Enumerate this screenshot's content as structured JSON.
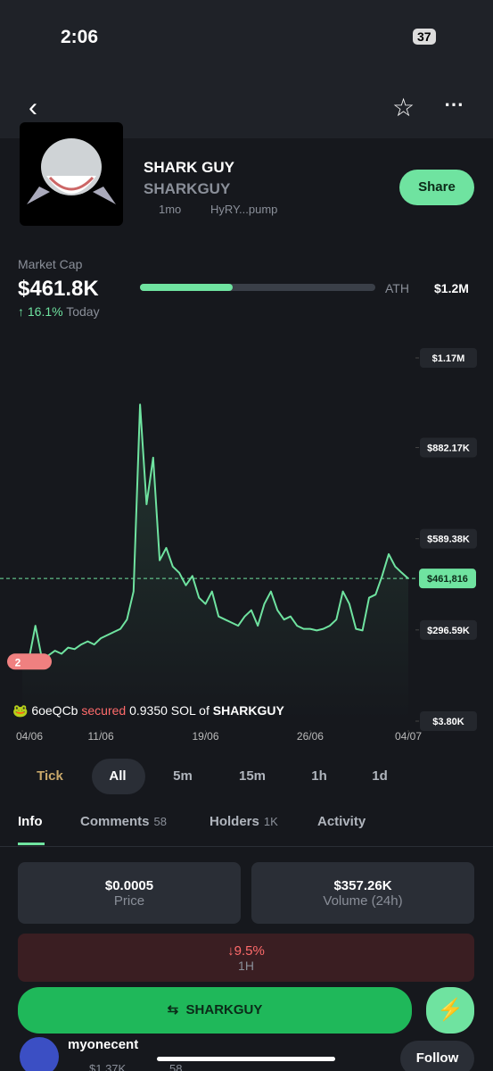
{
  "status": {
    "time": "2:06",
    "battery": "37"
  },
  "token": {
    "name": "SHARK GUY",
    "ticker": "SHARKGUY",
    "age": "1mo",
    "address": "HyRY...pump",
    "share": "Share"
  },
  "market": {
    "label": "Market Cap",
    "value": "$461.8K",
    "change": "16.1%",
    "period": "Today",
    "ath_label": "ATH",
    "ath_value": "$1.2M"
  },
  "chart": {
    "type": "line",
    "color": "#6fe3a0",
    "values": [
      195000,
      200000,
      310000,
      205000,
      215000,
      230000,
      220000,
      240000,
      235000,
      250000,
      260000,
      250000,
      270000,
      280000,
      290000,
      300000,
      330000,
      420000,
      1020000,
      700000,
      850000,
      520000,
      560000,
      500000,
      480000,
      440000,
      470000,
      400000,
      380000,
      420000,
      340000,
      330000,
      320000,
      310000,
      340000,
      360000,
      310000,
      380000,
      420000,
      360000,
      330000,
      340000,
      310000,
      300000,
      300000,
      295000,
      300000,
      310000,
      330000,
      420000,
      380000,
      300000,
      295000,
      400000,
      410000,
      470000,
      540000,
      500000,
      480000,
      461816
    ],
    "xlim": [
      0,
      59
    ],
    "xticks": [
      {
        "value": 0,
        "label": "04/06"
      },
      {
        "value": 12,
        "label": "11/06"
      },
      {
        "value": 28,
        "label": "19/06"
      },
      {
        "value": 44,
        "label": "26/06"
      },
      {
        "value": 59,
        "label": "04/07"
      }
    ],
    "ylim": [
      3800,
      1170000
    ],
    "yticks": [
      {
        "value": 3800,
        "label": "$3.80K"
      },
      {
        "value": 296590,
        "label": "$296.59K"
      },
      {
        "value": 589380,
        "label": "$589.38K"
      },
      {
        "value": 882170,
        "label": "$882.17K"
      },
      {
        "value": 1170000,
        "label": "$1.17M"
      }
    ],
    "current": {
      "value": 461816,
      "label": "$461,816"
    },
    "badge": "2"
  },
  "trade": {
    "user": "6oeQCb",
    "action": "secured",
    "amount": "0.9350 SOL of",
    "token": "SHARKGUY"
  },
  "timeframes": [
    "Tick",
    "All",
    "5m",
    "15m",
    "1h",
    "1d"
  ],
  "tabs": [
    {
      "label": "Info"
    },
    {
      "label": "Comments",
      "count": "58"
    },
    {
      "label": "Holders",
      "count": "1K"
    },
    {
      "label": "Activity"
    }
  ],
  "stats": {
    "price": {
      "value": "$0.0005",
      "label": "Price"
    },
    "volume": {
      "value": "$357.26K",
      "label": "Volume (24h)"
    },
    "change": {
      "value": "9.5%",
      "label": "1H"
    }
  },
  "trade_button": "SHARKGUY",
  "creator": {
    "name": "myonecent",
    "follow": "Follow",
    "holdings": "$1.37K",
    "followers": "58"
  }
}
